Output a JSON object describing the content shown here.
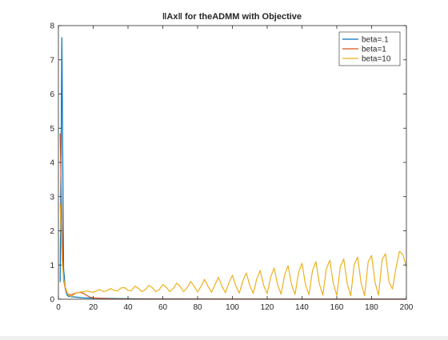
{
  "chart_data": {
    "type": "line",
    "title": "‖Ax‖ for theADMM with Objective",
    "xlabel": "",
    "ylabel": "",
    "xlim": [
      0,
      200
    ],
    "ylim": [
      0,
      8
    ],
    "xticks": [
      0,
      20,
      40,
      60,
      80,
      100,
      120,
      140,
      160,
      180,
      200
    ],
    "yticks": [
      0,
      1,
      2,
      3,
      4,
      5,
      6,
      7,
      8
    ],
    "grid": false,
    "legend_position": "top-right",
    "series": [
      {
        "name": "beta=.1",
        "color": "#0072BD",
        "x": [
          1,
          2,
          3,
          4,
          5,
          6,
          7,
          8,
          10,
          12,
          15,
          20,
          30,
          50,
          100,
          150,
          200
        ],
        "y": [
          0.5,
          7.65,
          0.9,
          0.3,
          0.12,
          0.08,
          0.08,
          0.07,
          0.06,
          0.05,
          0.04,
          0.03,
          0.02,
          0.01,
          0.005,
          0.003,
          0.002
        ]
      },
      {
        "name": "beta=1",
        "color": "#D95319",
        "x": [
          1,
          2,
          3,
          4,
          5,
          6,
          7,
          8,
          9,
          10,
          12,
          14,
          16,
          18,
          20,
          25,
          30,
          40,
          60,
          100,
          150,
          200
        ],
        "y": [
          4.85,
          2.2,
          0.55,
          0.3,
          0.18,
          0.14,
          0.12,
          0.14,
          0.16,
          0.18,
          0.2,
          0.18,
          0.12,
          0.06,
          0.04,
          0.02,
          0.01,
          0.005,
          0.003,
          0.002,
          0.001,
          0.001
        ]
      },
      {
        "name": "beta=10",
        "color": "#EDB120",
        "x": [
          1,
          2,
          3,
          4,
          5,
          6,
          7,
          8,
          9,
          10,
          12,
          14,
          16,
          18,
          20,
          22,
          24,
          26,
          28,
          30,
          32,
          34,
          36,
          38,
          40,
          42,
          44,
          46,
          48,
          50,
          52,
          54,
          56,
          58,
          60,
          62,
          64,
          66,
          68,
          70,
          72,
          74,
          76,
          78,
          80,
          82,
          84,
          86,
          88,
          90,
          92,
          94,
          96,
          98,
          100,
          102,
          104,
          106,
          108,
          110,
          112,
          114,
          116,
          118,
          120,
          122,
          124,
          126,
          128,
          130,
          132,
          134,
          136,
          138,
          140,
          142,
          144,
          146,
          148,
          150,
          152,
          154,
          156,
          158,
          160,
          162,
          164,
          166,
          168,
          170,
          172,
          174,
          176,
          178,
          180,
          182,
          184,
          186,
          188,
          190,
          192,
          194,
          196,
          198,
          200
        ],
        "y": [
          2.8,
          1.2,
          0.6,
          0.35,
          0.2,
          0.12,
          0.08,
          0.1,
          0.14,
          0.17,
          0.2,
          0.22,
          0.24,
          0.22,
          0.2,
          0.25,
          0.28,
          0.22,
          0.25,
          0.31,
          0.26,
          0.24,
          0.33,
          0.34,
          0.26,
          0.25,
          0.38,
          0.32,
          0.22,
          0.28,
          0.4,
          0.34,
          0.22,
          0.28,
          0.43,
          0.35,
          0.22,
          0.31,
          0.47,
          0.37,
          0.22,
          0.34,
          0.52,
          0.38,
          0.21,
          0.38,
          0.58,
          0.38,
          0.2,
          0.43,
          0.64,
          0.38,
          0.19,
          0.48,
          0.7,
          0.38,
          0.18,
          0.53,
          0.77,
          0.39,
          0.17,
          0.59,
          0.84,
          0.4,
          0.16,
          0.65,
          0.91,
          0.41,
          0.15,
          0.71,
          0.98,
          0.42,
          0.14,
          0.77,
          1.05,
          0.43,
          0.13,
          0.83,
          1.1,
          0.44,
          0.12,
          0.89,
          1.14,
          0.45,
          0.11,
          0.95,
          1.18,
          0.46,
          0.1,
          1.02,
          1.23,
          0.47,
          0.1,
          1.09,
          1.28,
          0.48,
          0.12,
          1.16,
          1.33,
          0.5,
          0.3,
          0.9,
          1.4,
          1.3,
          0.95
        ]
      }
    ]
  }
}
